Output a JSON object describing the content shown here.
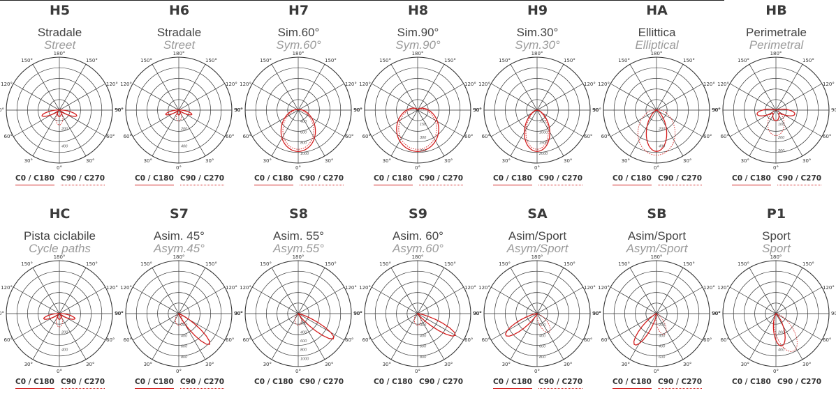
{
  "colors": {
    "curve": "#d21e1e",
    "grid": "#333333",
    "subtitle_en": "#9a9a9a"
  },
  "polar_labels": {
    "top": "180°",
    "upper_left": "150°",
    "upper_right": "150°",
    "mid_left": "120°",
    "mid_right": "120°",
    "left": "90°",
    "right": "90°",
    "lower_left": "60°",
    "lower_right": "60°",
    "bottom_left": "30°",
    "bottom_right": "30°",
    "bottom": "0°"
  },
  "legend": {
    "c0": "C0 / C180",
    "c90": "C90 / C270"
  },
  "diagrams": [
    {
      "code": "H5",
      "it": "Stradale",
      "en": "Street",
      "right_label": "90°",
      "radial": [
        "200",
        "400"
      ],
      "legend_style": "underlined",
      "shape": {
        "a": "street",
        "w": 1.0
      }
    },
    {
      "code": "H6",
      "it": "Stradale",
      "en": "Street",
      "right_label": "90°",
      "radial": [
        "200",
        "400"
      ],
      "legend_style": "underlined",
      "shape": {
        "a": "street",
        "w": 0.75
      }
    },
    {
      "code": "H7",
      "it": "Sim.60°",
      "en": "Sym.60°",
      "right_label": "90°",
      "radial": [
        "400",
        "600",
        "800",
        "1000"
      ],
      "legend_style": "underlined",
      "shape": {
        "a": "sym",
        "w": 0.55
      }
    },
    {
      "code": "H8",
      "it": "Sim.90°",
      "en": "Sym.90°",
      "right_label": "90°",
      "radial": [
        "150",
        "300",
        "400"
      ],
      "legend_style": "underlined",
      "shape": {
        "a": "sym",
        "w": 0.8
      }
    },
    {
      "code": "H9",
      "it": "Sim.30°",
      "en": "Sym.30°",
      "right_label": "90",
      "radial": [
        "750",
        "1000",
        "1500",
        "2000"
      ],
      "legend_style": "underlined",
      "shape": {
        "a": "sym",
        "w": 0.3
      }
    },
    {
      "code": "HA",
      "it": "Ellittica",
      "en": "Elliptical",
      "right_label": "90°",
      "radial": [
        "200",
        "400"
      ],
      "legend_style": "underlined",
      "shape": {
        "a": "ellip",
        "w": 0.6
      }
    },
    {
      "code": "HB",
      "it": "Perimetrale",
      "en": "Perimetral",
      "right_label": "90°",
      "radial": [
        "100",
        "200",
        "300"
      ],
      "legend_style": "underlined",
      "shape": {
        "a": "perim",
        "w": 1.0
      }
    },
    {
      "code": "HC",
      "it": "Pista ciclabile",
      "en": "Cycle paths",
      "right_label": "90°",
      "radial": [
        "200",
        "400"
      ],
      "legend_style": "underlined",
      "shape": {
        "a": "street",
        "w": 0.9
      }
    },
    {
      "code": "S7",
      "it": "Asim. 45°",
      "en": "Asym.45°",
      "right_label": "90°",
      "radial": [
        "200",
        "400",
        "600",
        "800"
      ],
      "legend_style": "underlined",
      "shape": {
        "a": "asym",
        "w": 45
      }
    },
    {
      "code": "S8",
      "it": "Asim. 55°",
      "en": "Asym.55°",
      "right_label": "90°",
      "radial": [
        "200",
        "400",
        "600",
        "800",
        "1000"
      ],
      "legend_style": "plain",
      "shape": {
        "a": "asym",
        "w": 55
      }
    },
    {
      "code": "S9",
      "it": "Asim. 60°",
      "en": "Asym.60°",
      "right_label": "90°",
      "radial": [
        "300",
        "400",
        "600",
        "800"
      ],
      "legend_style": "plain",
      "shape": {
        "a": "asym",
        "w": 60
      }
    },
    {
      "code": "SA",
      "it": "Asim/Sport",
      "en": "Asym/Sport",
      "right_label": "90°",
      "radial": [
        "200",
        "400",
        "600",
        "800"
      ],
      "legend_style": "underlined",
      "shape": {
        "a": "sportL",
        "w": 55
      }
    },
    {
      "code": "SB",
      "it": "Asim/Sport",
      "en": "Asym/Sport",
      "right_label": "90°",
      "radial": [
        "200",
        "300",
        "400",
        "600"
      ],
      "legend_style": "underlined",
      "shape": {
        "a": "sportL",
        "w": 35
      }
    },
    {
      "code": "P1",
      "it": "Sport",
      "en": "Sport",
      "right_label": "90°",
      "radial": [
        "200",
        "400"
      ],
      "legend_style": "plain",
      "shape": {
        "a": "sport",
        "w": 1.0
      }
    }
  ]
}
